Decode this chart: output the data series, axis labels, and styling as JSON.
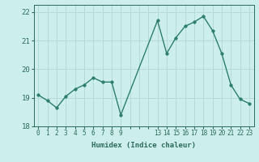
{
  "x": [
    0,
    1,
    2,
    3,
    4,
    5,
    6,
    7,
    8,
    9,
    13,
    14,
    15,
    16,
    17,
    18,
    19,
    20,
    21,
    22,
    23
  ],
  "y": [
    19.1,
    18.9,
    18.65,
    19.05,
    19.3,
    19.45,
    19.7,
    19.55,
    19.55,
    18.4,
    21.7,
    20.55,
    21.1,
    21.5,
    21.65,
    21.85,
    21.35,
    20.55,
    19.45,
    18.95,
    18.8
  ],
  "line_color": "#2e7d6e",
  "marker_color": "#2e7d6e",
  "bg_color": "#cceeed",
  "grid_color": "#b0d8d5",
  "xlabel": "Humidex (Indice chaleur)",
  "xlim": [
    -0.5,
    23.5
  ],
  "ylim": [
    18.0,
    22.25
  ],
  "yticks": [
    18,
    19,
    20,
    21,
    22
  ],
  "title_color": "#2e6b5e",
  "font_family": "monospace",
  "linewidth": 1.0,
  "markersize": 2.5
}
